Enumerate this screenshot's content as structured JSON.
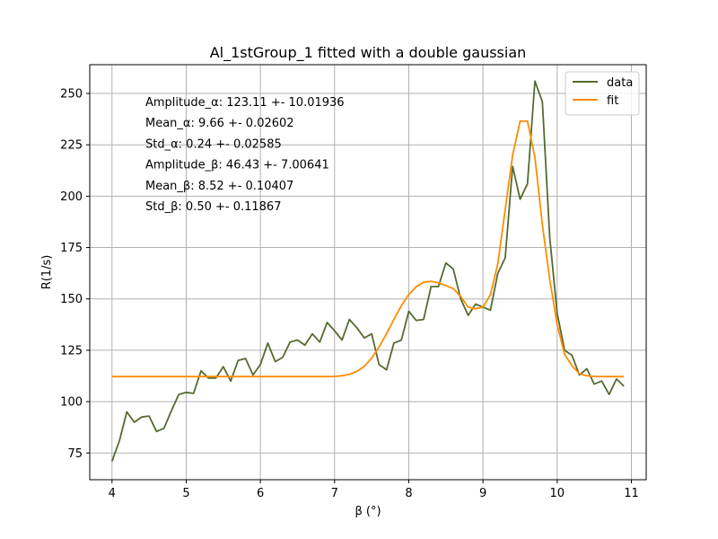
{
  "chart_data": {
    "type": "line",
    "title": "Al_1stGroup_1 fitted with a double gaussian",
    "xlabel": "β (°)",
    "ylabel": "R(1/s)",
    "xlim": [
      3.7,
      11.2
    ],
    "ylim": [
      62,
      264
    ],
    "x_ticks": [
      4,
      5,
      6,
      7,
      8,
      9,
      10,
      11
    ],
    "y_ticks": [
      75,
      100,
      125,
      150,
      175,
      200,
      225,
      250
    ],
    "x_tick_labels": [
      "4",
      "5",
      "6",
      "7",
      "8",
      "9",
      "10",
      "11"
    ],
    "y_tick_labels": [
      "75",
      "100",
      "125",
      "150",
      "175",
      "200",
      "225",
      "250"
    ],
    "grid": true,
    "legend_position": "top-right",
    "annotations": [
      "Amplitude_α: 123.11 +- 10.01936",
      "Mean_α: 9.66 +- 0.02602",
      "Std_α: 0.24 +- 0.02585",
      "Amplitude_β: 46.43 +- 7.00641",
      "Mean_β: 8.52 +- 0.10407",
      "Std_β: 0.50 +- 0.11867"
    ],
    "fit_params": {
      "amplitude_alpha": 123.11,
      "mean_alpha": 9.66,
      "std_alpha": 0.24,
      "amplitude_beta": 46.43,
      "mean_beta": 8.52,
      "std_beta": 0.5,
      "baseline": 112.2
    },
    "series": [
      {
        "name": "data",
        "color": "#556b2f",
        "x": [
          4.0,
          4.1,
          4.2,
          4.3,
          4.4,
          4.5,
          4.6,
          4.7,
          4.8,
          4.9,
          5.0,
          5.1,
          5.2,
          5.3,
          5.4,
          5.5,
          5.6,
          5.7,
          5.8,
          5.9,
          6.0,
          6.1,
          6.2,
          6.3,
          6.4,
          6.5,
          6.6,
          6.7,
          6.8,
          6.9,
          7.0,
          7.1,
          7.2,
          7.3,
          7.4,
          7.5,
          7.6,
          7.7,
          7.8,
          7.9,
          8.0,
          8.1,
          8.2,
          8.3,
          8.4,
          8.5,
          8.6,
          8.7,
          8.8,
          8.9,
          9.0,
          9.1,
          9.2,
          9.3,
          9.4,
          9.5,
          9.6,
          9.7,
          9.8,
          9.9,
          10.0,
          10.1,
          10.2,
          10.3,
          10.4,
          10.5,
          10.6,
          10.7,
          10.8,
          10.9
        ],
        "values": [
          71,
          81,
          95,
          90,
          92.5,
          93,
          85.5,
          87,
          95.5,
          103.5,
          104.5,
          104,
          115,
          111.5,
          111.5,
          117,
          110,
          120,
          121,
          113,
          118,
          128.5,
          119.5,
          121.5,
          129,
          130,
          127.5,
          133,
          129,
          138.5,
          134.5,
          130,
          140,
          136,
          131,
          133,
          118,
          115.5,
          128.5,
          130,
          144,
          139.5,
          140,
          156,
          156,
          167.5,
          164.5,
          150,
          142,
          147.5,
          146,
          144.5,
          162.5,
          170,
          214.5,
          198.5,
          206,
          256,
          246,
          180,
          143,
          125,
          122.5,
          113,
          116,
          108.5,
          110,
          103.5,
          111,
          107.5
        ]
      },
      {
        "name": "fit",
        "color": "#ff8c00",
        "x": [
          4.0,
          4.1,
          4.2,
          4.3,
          4.4,
          4.5,
          4.6,
          4.7,
          4.8,
          4.9,
          5.0,
          5.1,
          5.2,
          5.3,
          5.4,
          5.5,
          5.6,
          5.7,
          5.8,
          5.9,
          6.0,
          6.1,
          6.2,
          6.3,
          6.4,
          6.5,
          6.6,
          6.7,
          6.8,
          6.9,
          7.0,
          7.1,
          7.2,
          7.3,
          7.4,
          7.5,
          7.6,
          7.7,
          7.8,
          7.9,
          8.0,
          8.1,
          8.2,
          8.3,
          8.4,
          8.5,
          8.6,
          8.7,
          8.8,
          8.9,
          9.0,
          9.1,
          9.2,
          9.3,
          9.4,
          9.5,
          9.6,
          9.7,
          9.8,
          9.9,
          10.0,
          10.1,
          10.2,
          10.3,
          10.4,
          10.5,
          10.6,
          10.7,
          10.8,
          10.9
        ],
        "values": [
          112.2,
          112.2,
          112.2,
          112.2,
          112.2,
          112.2,
          112.2,
          112.2,
          112.2,
          112.2,
          112.2,
          112.2,
          112.2,
          112.2,
          112.2,
          112.2,
          112.2,
          112.2,
          112.2,
          112.2,
          112.2,
          112.2,
          112.2,
          112.2,
          112.2,
          112.2,
          112.2,
          112.2,
          112.2,
          112.2,
          112.3,
          112.6,
          113.3,
          114.7,
          117.2,
          121.2,
          126.6,
          133.1,
          140.0,
          146.7,
          152.2,
          155.9,
          158.1,
          158.6,
          157.8,
          156.5,
          155.0,
          151.2,
          146.0,
          145.2,
          146.0,
          152.0,
          167.2,
          193.5,
          220.0,
          236.5,
          236.5,
          219.0,
          186.0,
          159.5,
          137.5,
          123.0,
          117.5,
          113.5,
          112.6,
          112.3,
          112.2,
          112.2,
          112.2,
          112.2
        ]
      }
    ]
  }
}
